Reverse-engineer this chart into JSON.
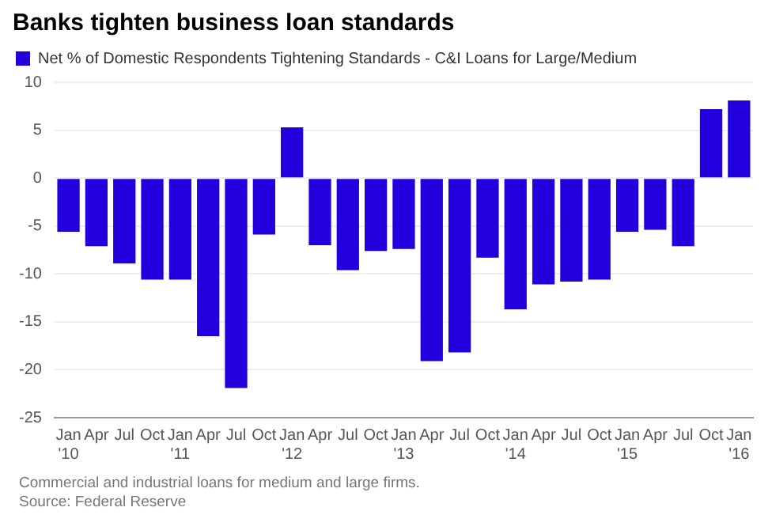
{
  "chart_data": {
    "type": "bar",
    "title": "Banks tighten business loan standards",
    "categories": [
      "Jan '10",
      "Apr",
      "Jul",
      "Oct",
      "Jan '11",
      "Apr",
      "Jul",
      "Oct",
      "Jan '12",
      "Apr",
      "Jul",
      "Oct",
      "Jan '13",
      "Apr",
      "Jul",
      "Oct",
      "Jan '14",
      "Apr",
      "Jul",
      "Oct",
      "Jan '15",
      "Apr",
      "Jul",
      "Oct",
      "Jan '16"
    ],
    "series": [
      {
        "name": "Net % of Domestic Respondents Tightening Standards - C&I Loans for Large/Medium",
        "color": "#2200dd",
        "values": [
          -5.6,
          -7.1,
          -8.9,
          -10.6,
          -10.6,
          -16.5,
          -21.9,
          -5.9,
          5.3,
          -7.0,
          -9.6,
          -7.6,
          -7.4,
          -19.1,
          -18.2,
          -8.3,
          -13.7,
          -11.1,
          -10.8,
          -10.6,
          -5.6,
          -5.4,
          -7.1,
          7.2,
          8.1
        ]
      }
    ],
    "ylim": [
      -25,
      10
    ],
    "yticks": [
      -25,
      -20,
      -15,
      -10,
      -5,
      0,
      5,
      10
    ],
    "grid": "y",
    "legend": "top left",
    "annotations": [
      "Commercial and industrial loans for medium and large firms.",
      "Source: Federal Reserve"
    ]
  }
}
